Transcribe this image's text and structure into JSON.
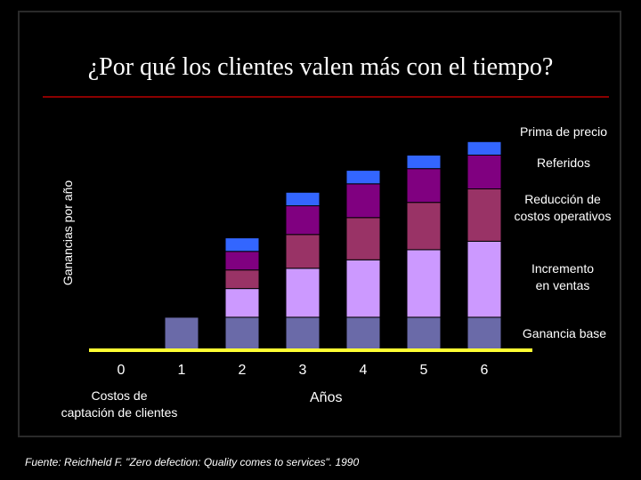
{
  "title": "¿Por qué los clientes valen más con el tiempo?",
  "source": "Fuente: Reichheld F. \"Zero defection: Quality comes to services\". 1990",
  "cost_label_lines": [
    "Costos de",
    "captación de clientes"
  ],
  "colors": {
    "base": "#6a6aa8",
    "ventas": "#cc99ff",
    "costos": "#993366",
    "referidos": "#800080",
    "prima": "#3366ff",
    "axis": "#ffff33",
    "title_rule": "#8b0000"
  },
  "chart_data": {
    "type": "bar",
    "stacked": true,
    "title": "¿Por qué los clientes valen más con el tiempo?",
    "xlabel": "Años",
    "ylabel": "Ganancias por año",
    "categories": [
      "0",
      "1",
      "2",
      "3",
      "4",
      "5",
      "6"
    ],
    "series": [
      {
        "key": "base",
        "name": "Ganancia base",
        "legend_lines": [
          "Ganancia base"
        ],
        "values": [
          0,
          1.9,
          1.9,
          1.9,
          1.9,
          1.9,
          1.9
        ]
      },
      {
        "key": "ventas",
        "name": "Incremento en ventas",
        "legend_lines": [
          "Incremento",
          "en ventas"
        ],
        "values": [
          0,
          0,
          1.7,
          2.9,
          3.4,
          4.0,
          4.5
        ]
      },
      {
        "key": "costos",
        "name": "Reducción de costos operativos",
        "legend_lines": [
          "Reducción de",
          "costos operativos"
        ],
        "values": [
          0,
          0,
          1.1,
          2.0,
          2.5,
          2.8,
          3.1
        ]
      },
      {
        "key": "referidos",
        "name": "Referidos",
        "legend_lines": [
          "Referidos"
        ],
        "values": [
          0,
          0,
          1.1,
          1.7,
          2.0,
          2.0,
          2.0
        ]
      },
      {
        "key": "prima",
        "name": "Prima de precio",
        "legend_lines": [
          "Prima de precio"
        ],
        "values": [
          0,
          0,
          0.8,
          0.8,
          0.8,
          0.8,
          0.8
        ]
      }
    ],
    "legend_position": "right",
    "grid": false
  }
}
